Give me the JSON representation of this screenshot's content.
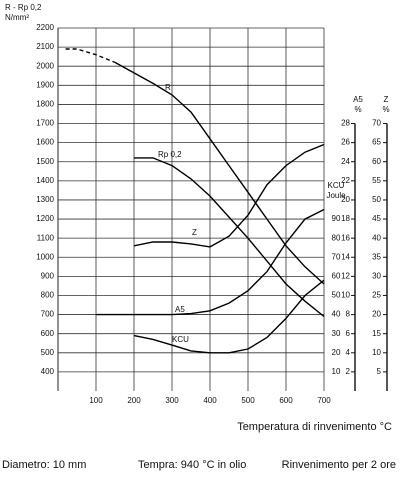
{
  "chart_data": {
    "type": "line",
    "y_label": [
      "R - Rp 0,2",
      "N/mm²"
    ],
    "x_label": "Temperatura di rinvenimento °C",
    "notes": [
      "Diametro: 10 mm",
      "Tempra: 940 °C in olio",
      "Rinvenimento per 2 ore"
    ],
    "x": [
      20,
      50,
      100,
      150,
      200,
      250,
      300,
      350,
      400,
      450,
      500,
      550,
      600,
      650,
      700
    ],
    "xlim": [
      0,
      700
    ],
    "xticks": [
      100,
      200,
      300,
      400,
      500,
      600,
      700
    ],
    "ylim": [
      300,
      2200
    ],
    "yticks": [
      400,
      500,
      600,
      700,
      800,
      900,
      1000,
      1100,
      1200,
      1300,
      1400,
      1500,
      1600,
      1700,
      1800,
      1900,
      2000,
      2100,
      2200
    ],
    "y2_label": [
      "A5",
      "%"
    ],
    "y2lim": [
      0,
      38
    ],
    "y2ticks": [
      2,
      4,
      6,
      8,
      10,
      12,
      14,
      16,
      18,
      20,
      22,
      24,
      26,
      28
    ],
    "y3_label": [
      "Z",
      "%"
    ],
    "y3lim": [
      0,
      95
    ],
    "y3ticks": [
      5,
      10,
      15,
      20,
      25,
      30,
      35,
      40,
      45,
      50,
      55,
      60,
      65,
      70
    ],
    "y4_label": [
      "KCU",
      "Joule"
    ],
    "y4lim": [
      0,
      190
    ],
    "y4ticks": [
      10,
      20,
      30,
      40,
      50,
      60,
      70,
      80,
      90
    ],
    "grid": true,
    "series": [
      {
        "name": "R",
        "color": "#000000",
        "axis": "y",
        "dash_until": 150,
        "values": [
          2090,
          2090,
          2060,
          2020,
          1965,
          1910,
          1850,
          1760,
          1620,
          1480,
          1340,
          1200,
          1060,
          950,
          860
        ]
      },
      {
        "name": "Rp 0,2",
        "color": "#000000",
        "axis": "y",
        "values": [
          null,
          null,
          null,
          null,
          1520,
          1520,
          1480,
          1410,
          1320,
          1210,
          1100,
          980,
          860,
          770,
          690
        ]
      },
      {
        "name": "Z",
        "color": "#000000",
        "axis": "y3",
        "values": [
          null,
          null,
          null,
          null,
          38,
          39,
          39,
          38.5,
          37.7,
          40.5,
          46,
          54,
          59,
          62.5,
          64.5
        ]
      },
      {
        "name": "A5",
        "color": "#000000",
        "axis": "y2",
        "values": [
          null,
          null,
          8,
          8,
          8,
          8,
          8,
          8.1,
          8.4,
          9.2,
          10.5,
          12.5,
          15.5,
          18,
          19
        ]
      },
      {
        "name": "KCU",
        "color": "#000000",
        "axis": "y4",
        "values": [
          null,
          null,
          null,
          null,
          29,
          27,
          24,
          21,
          20,
          20,
          22,
          28,
          38,
          50,
          58
        ]
      }
    ]
  }
}
